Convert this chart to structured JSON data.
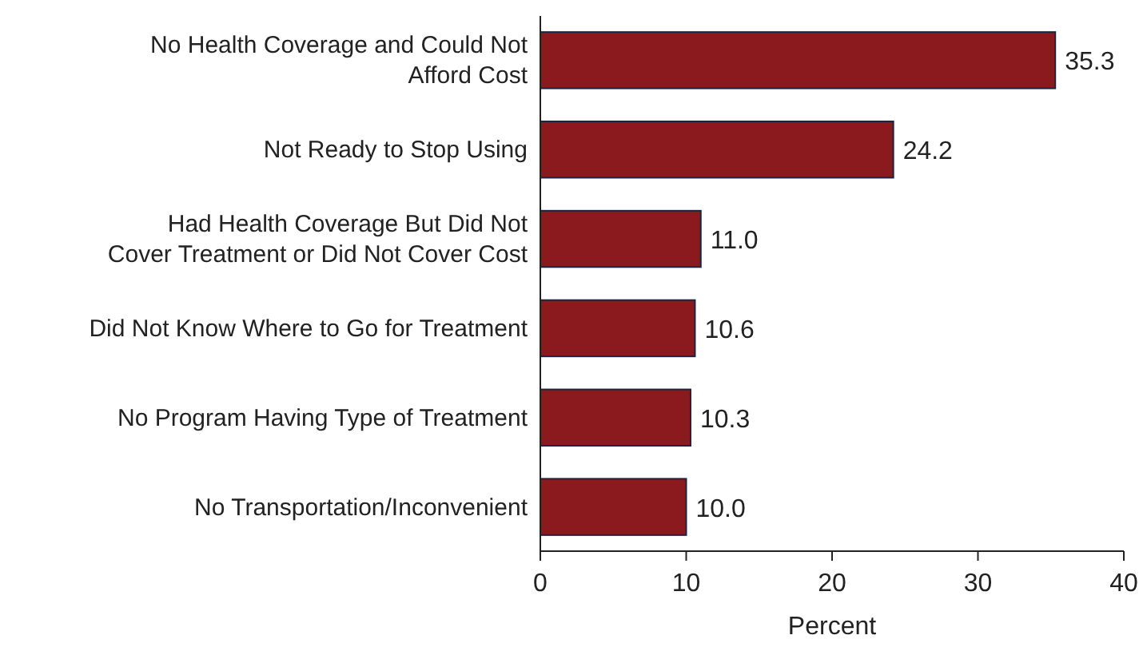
{
  "chart_data": {
    "type": "bar",
    "orientation": "horizontal",
    "xlabel": "Percent",
    "categories": [
      "No Health Coverage and Could Not Afford Cost",
      "Not Ready to Stop Using",
      "Had Health Coverage But Did Not Cover Treatment or Did Not Cover Cost",
      "Did Not Know Where to Go for Treatment",
      "No Program Having Type of Treatment",
      "No Transportation/Inconvenient"
    ],
    "values": [
      35.3,
      24.2,
      11.0,
      10.6,
      10.3,
      10.0
    ],
    "value_labels": [
      "35.3",
      "24.2",
      "11.0",
      "10.6",
      "10.3",
      "10.0"
    ],
    "color": "#8b1a1f",
    "xlim": [
      0,
      40
    ],
    "xticks": [
      0,
      10,
      20,
      30,
      40
    ],
    "grid": false
  }
}
